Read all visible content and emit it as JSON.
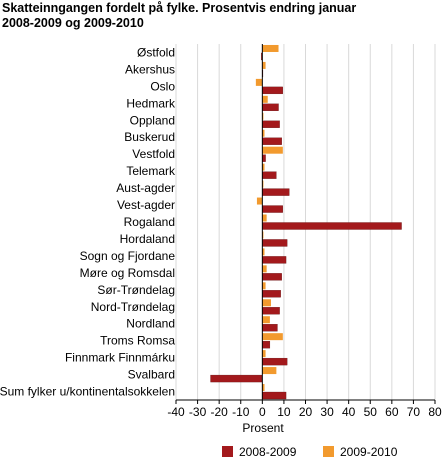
{
  "title_lines": [
    "Skatteinngangen fordelt på fylke. Prosentvis endring januar",
    "2008-2009 og 2009-2010"
  ],
  "colors": {
    "series_2008_2009": "#a3191c",
    "series_2009_2010": "#f29a2e",
    "grid": "#d9d9d9",
    "axis": "#000000"
  },
  "chart_data": {
    "type": "bar",
    "orientation": "horizontal",
    "title": "Skatteinngangen fordelt på fylke. Prosentvis endring januar 2008-2009 og 2009-2010",
    "xlabel": "Prosent",
    "ylabel": "",
    "xlim": [
      -40,
      80
    ],
    "xticks": [
      -40,
      -30,
      -20,
      -10,
      0,
      10,
      20,
      30,
      40,
      50,
      60,
      70,
      80
    ],
    "grid": "vertical",
    "legend_position": "bottom",
    "categories": [
      "Østfold",
      "Akershus",
      "Oslo",
      "Hedmark",
      "Oppland",
      "Buskerud",
      "Vestfold",
      "Telemark",
      "Aust-agder",
      "Vest-agder",
      "Rogaland",
      "Hordaland",
      "Sogn og Fjordane",
      "Møre og Romsdal",
      "Sør-Trøndelag",
      "Nord-Trøndelag",
      "Nordland",
      "Troms Romsa",
      "Finnmark Finnmárku",
      "Svalbard",
      "Sum fylker u/kontinentalsokkelen"
    ],
    "series": [
      {
        "name": "2008-2009",
        "values": [
          -0.5,
          0,
          9.5,
          7.5,
          8,
          9,
          1.5,
          6.5,
          12.5,
          9.5,
          64.5,
          11.5,
          11,
          9,
          8.5,
          8,
          7,
          3.5,
          11.5,
          -24,
          11
        ]
      },
      {
        "name": "2009-2010",
        "values": [
          7.5,
          1.5,
          -3,
          2.5,
          0.5,
          1,
          9.5,
          1,
          0.5,
          -2.5,
          2,
          0.5,
          1,
          2,
          1.5,
          4,
          3.5,
          9.5,
          1.5,
          6.5,
          1
        ]
      }
    ]
  }
}
